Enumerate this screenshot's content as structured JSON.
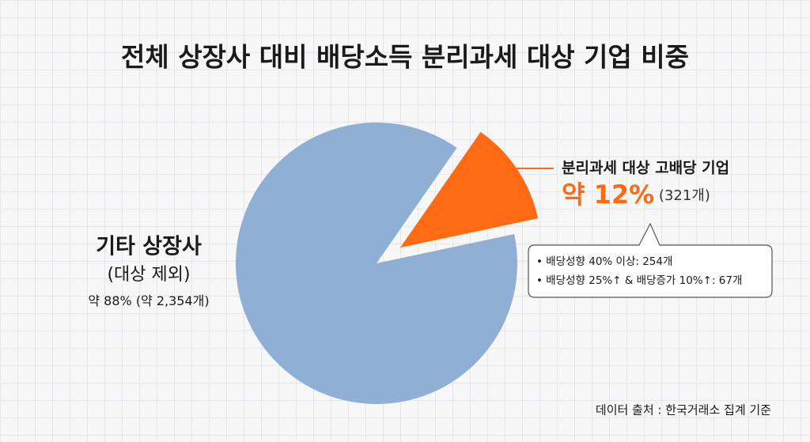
{
  "chart_data": {
    "type": "pie",
    "title": "전체 상장사 대비 배당소득 분리과세 대상 기업 비중",
    "categories": [
      "기타 상장사",
      "분리과세 대상 고배당 기업"
    ],
    "values": [
      88,
      12
    ],
    "value_labels": [
      "약 88%",
      "약 12%"
    ],
    "count_labels": [
      "(약 2,354개)",
      "(321개)"
    ],
    "colors": [
      "#8fafd4",
      "#ff6a13"
    ],
    "category_note": "(대상 제외)",
    "callout": [
      "• 배당성향 40% 이상: 254개",
      "• 배당성향 25%↑ & 배당증가 10%↑: 67개"
    ],
    "source": "데이터 출처 : 한국거래소 집계 기준"
  }
}
